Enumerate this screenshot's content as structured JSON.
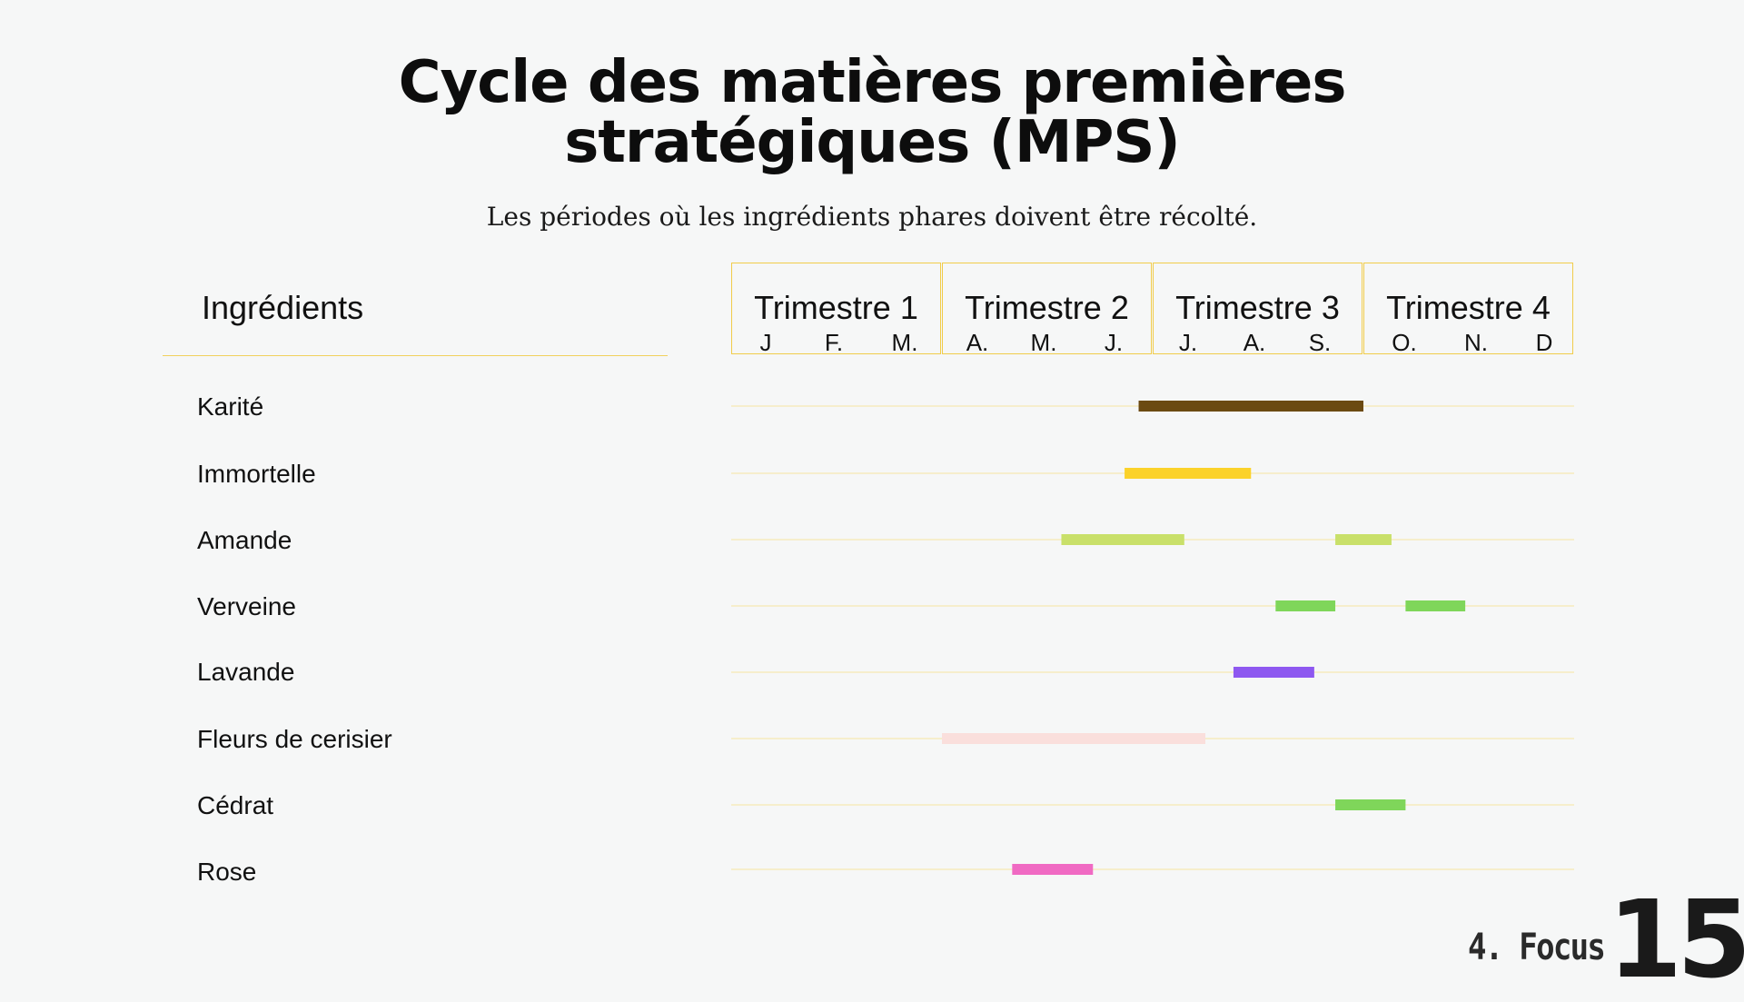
{
  "title_line1": "Cycle des matières premières",
  "title_line2": "stratégiques (MPS)",
  "subtitle": "Les périodes où les ingrédients phares doivent être récolté.",
  "footer": {
    "section": "4. Focus",
    "page": "15"
  },
  "chart_data": {
    "type": "gantt",
    "row_header": "Ingrédients",
    "quarters": [
      {
        "name": "Trimestre 1",
        "months": [
          "J",
          "F.",
          "M."
        ]
      },
      {
        "name": "Trimestre 2",
        "months": [
          "A.",
          "M.",
          "J."
        ]
      },
      {
        "name": "Trimestre 3",
        "months": [
          "J.",
          "A.",
          "S."
        ]
      },
      {
        "name": "Trimestre 4",
        "months": [
          "O.",
          "N.",
          "D"
        ]
      }
    ],
    "grid_line_color": "#f5e6a0",
    "rows": [
      {
        "label": "Karité",
        "color": "#6b4a12",
        "periods": [
          [
            5.8,
            9.0
          ]
        ]
      },
      {
        "label": "Immortelle",
        "color": "#fbd22a",
        "periods": [
          [
            5.6,
            7.4
          ]
        ]
      },
      {
        "label": "Amande",
        "color": "#c9e06a",
        "periods": [
          [
            4.7,
            6.45
          ],
          [
            8.6,
            9.4
          ]
        ]
      },
      {
        "label": "Verveine",
        "color": "#7fd65a",
        "periods": [
          [
            7.75,
            8.6
          ],
          [
            9.6,
            10.45
          ]
        ]
      },
      {
        "label": "Lavande",
        "color": "#8e58f0",
        "periods": [
          [
            7.15,
            8.3
          ]
        ]
      },
      {
        "label": "Fleurs de cerisier",
        "color": "#fadfdc",
        "periods": [
          [
            3.0,
            6.75
          ]
        ]
      },
      {
        "label": "Cédrat",
        "color": "#7fd65a",
        "periods": [
          [
            8.6,
            9.6
          ]
        ]
      },
      {
        "label": "Rose",
        "color": "#f06ac3",
        "periods": [
          [
            4.0,
            5.15
          ]
        ]
      }
    ]
  }
}
